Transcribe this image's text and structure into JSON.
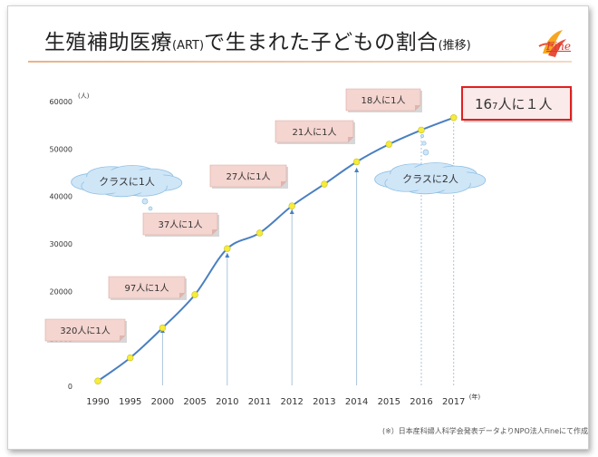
{
  "title": {
    "main_a": "生殖補助医療",
    "main_b": "(ART)",
    "main_c": "で生まれた子どもの割合",
    "main_d": "(推移)"
  },
  "logo": {
    "text": "Fine",
    "icon": "fine-logo-icon"
  },
  "source": "(※）日本産科婦人科学会発表データよりNPO法人Fineにて作成",
  "chart_data": {
    "type": "line",
    "x": [
      "1990",
      "1995",
      "2000",
      "2005",
      "2010",
      "2011",
      "2012",
      "2013",
      "2014",
      "2015",
      "2016",
      "2017"
    ],
    "xunit": "(年)",
    "yunit": "(人)",
    "ylim": [
      0,
      60000
    ],
    "yticks": [
      0,
      10000,
      20000,
      30000,
      40000,
      50000,
      60000
    ],
    "series": [
      {
        "values": [
          1100,
          6000,
          12300,
          19300,
          29000,
          32300,
          38000,
          42600,
          47300,
          51000,
          54000,
          56600
        ]
      }
    ],
    "callouts": [
      {
        "text": "320人に1人",
        "at": "1990"
      },
      {
        "text": "97人に1人",
        "at": "2000"
      },
      {
        "text": "37人に1人",
        "at": "2010"
      },
      {
        "text": "27人に1人",
        "at": "2012"
      },
      {
        "text": "21人に1人",
        "at": "2014"
      },
      {
        "text": "18人に1人",
        "at": "2016"
      }
    ],
    "highlight": {
      "text_a": "16",
      "text_b": "7",
      "text_c": "人に１人",
      "at": "2017"
    },
    "clouds": [
      {
        "text": "クラスに1人",
        "near": "2000"
      },
      {
        "text": "クラスに2人",
        "near": "2016"
      }
    ],
    "colors": {
      "line": "#4a7fc1",
      "marker": "#f5ec3c",
      "callout": "#f4d5d0",
      "highlight": "#e02020",
      "cloud": "#cfe6f7"
    }
  }
}
